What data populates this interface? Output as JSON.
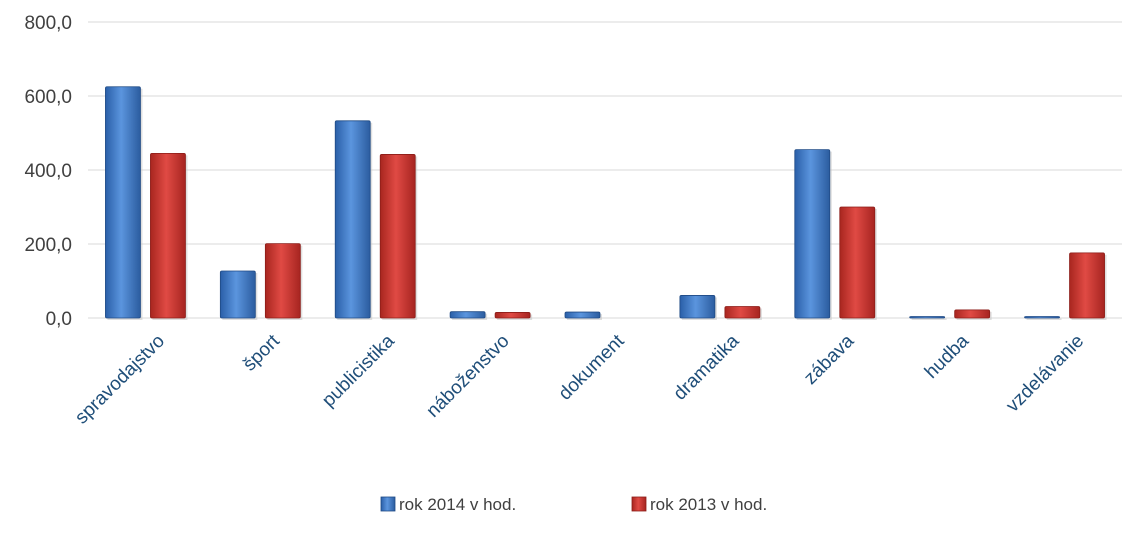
{
  "chart_data": {
    "type": "bar",
    "categories": [
      "spravodajstvo",
      "šport",
      "publicistika",
      "náboženstvo",
      "dokument",
      "dramatika",
      "zábava",
      "hudba",
      "vzdelávanie"
    ],
    "series": [
      {
        "name": "rok 2014 v hod.",
        "values": [
          625,
          127,
          533,
          17,
          16,
          61,
          455,
          1,
          3
        ],
        "color": "#3a75c4"
      },
      {
        "name": "rok 2013 v hod.",
        "values": [
          445,
          201,
          442,
          15,
          0,
          31,
          300,
          22,
          176
        ],
        "color": "#c0312e"
      }
    ],
    "ylim": [
      0,
      800
    ],
    "yticks": [
      "0,0",
      "200,0",
      "400,0",
      "600,0",
      "800,0"
    ],
    "grid": true,
    "legend_position": "bottom"
  }
}
